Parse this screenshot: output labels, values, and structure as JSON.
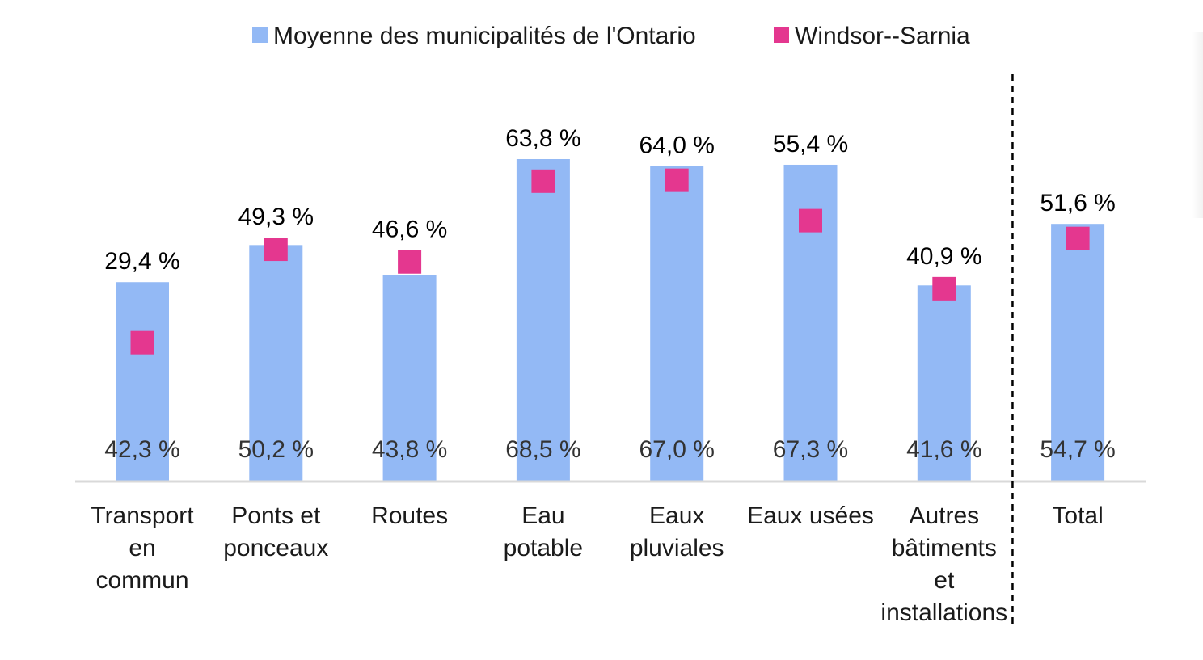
{
  "chart_data": {
    "type": "bar",
    "categories": [
      [
        "Transport",
        "en",
        "commun"
      ],
      [
        "Ponts et",
        "ponceaux"
      ],
      [
        "Routes"
      ],
      [
        "Eau",
        "potable"
      ],
      [
        "Eaux",
        "pluviales"
      ],
      [
        "Eaux usées"
      ],
      [
        "Autres",
        "bâtiments",
        "et",
        "installations"
      ],
      [
        "Total"
      ]
    ],
    "series": [
      {
        "name": "Moyenne des municipalités de l'Ontario",
        "color": "#93b9f5",
        "values": [
          42.3,
          50.2,
          43.8,
          68.5,
          67.0,
          67.3,
          41.6,
          54.7
        ],
        "labels": [
          "42,3 %",
          "50,2 %",
          "43,8 %",
          "68,5 %",
          "67,0 %",
          "67,3 %",
          "41,6 %",
          "54,7 %"
        ]
      },
      {
        "name": "Windsor--Sarnia",
        "color": "#e4378f",
        "marker": "square",
        "values": [
          29.4,
          49.3,
          46.6,
          63.8,
          64.0,
          55.4,
          40.9,
          51.6
        ],
        "labels": [
          "29,4 %",
          "49,3 %",
          "46,6 %",
          "63,8 %",
          "64,0 %",
          "55,4 %",
          "40,9 %",
          "51,6 %"
        ]
      }
    ],
    "ylim": [
      0,
      70
    ],
    "grid": false,
    "legend": "top",
    "separator_before": "Total",
    "axis_color": "#d9d9d9"
  }
}
